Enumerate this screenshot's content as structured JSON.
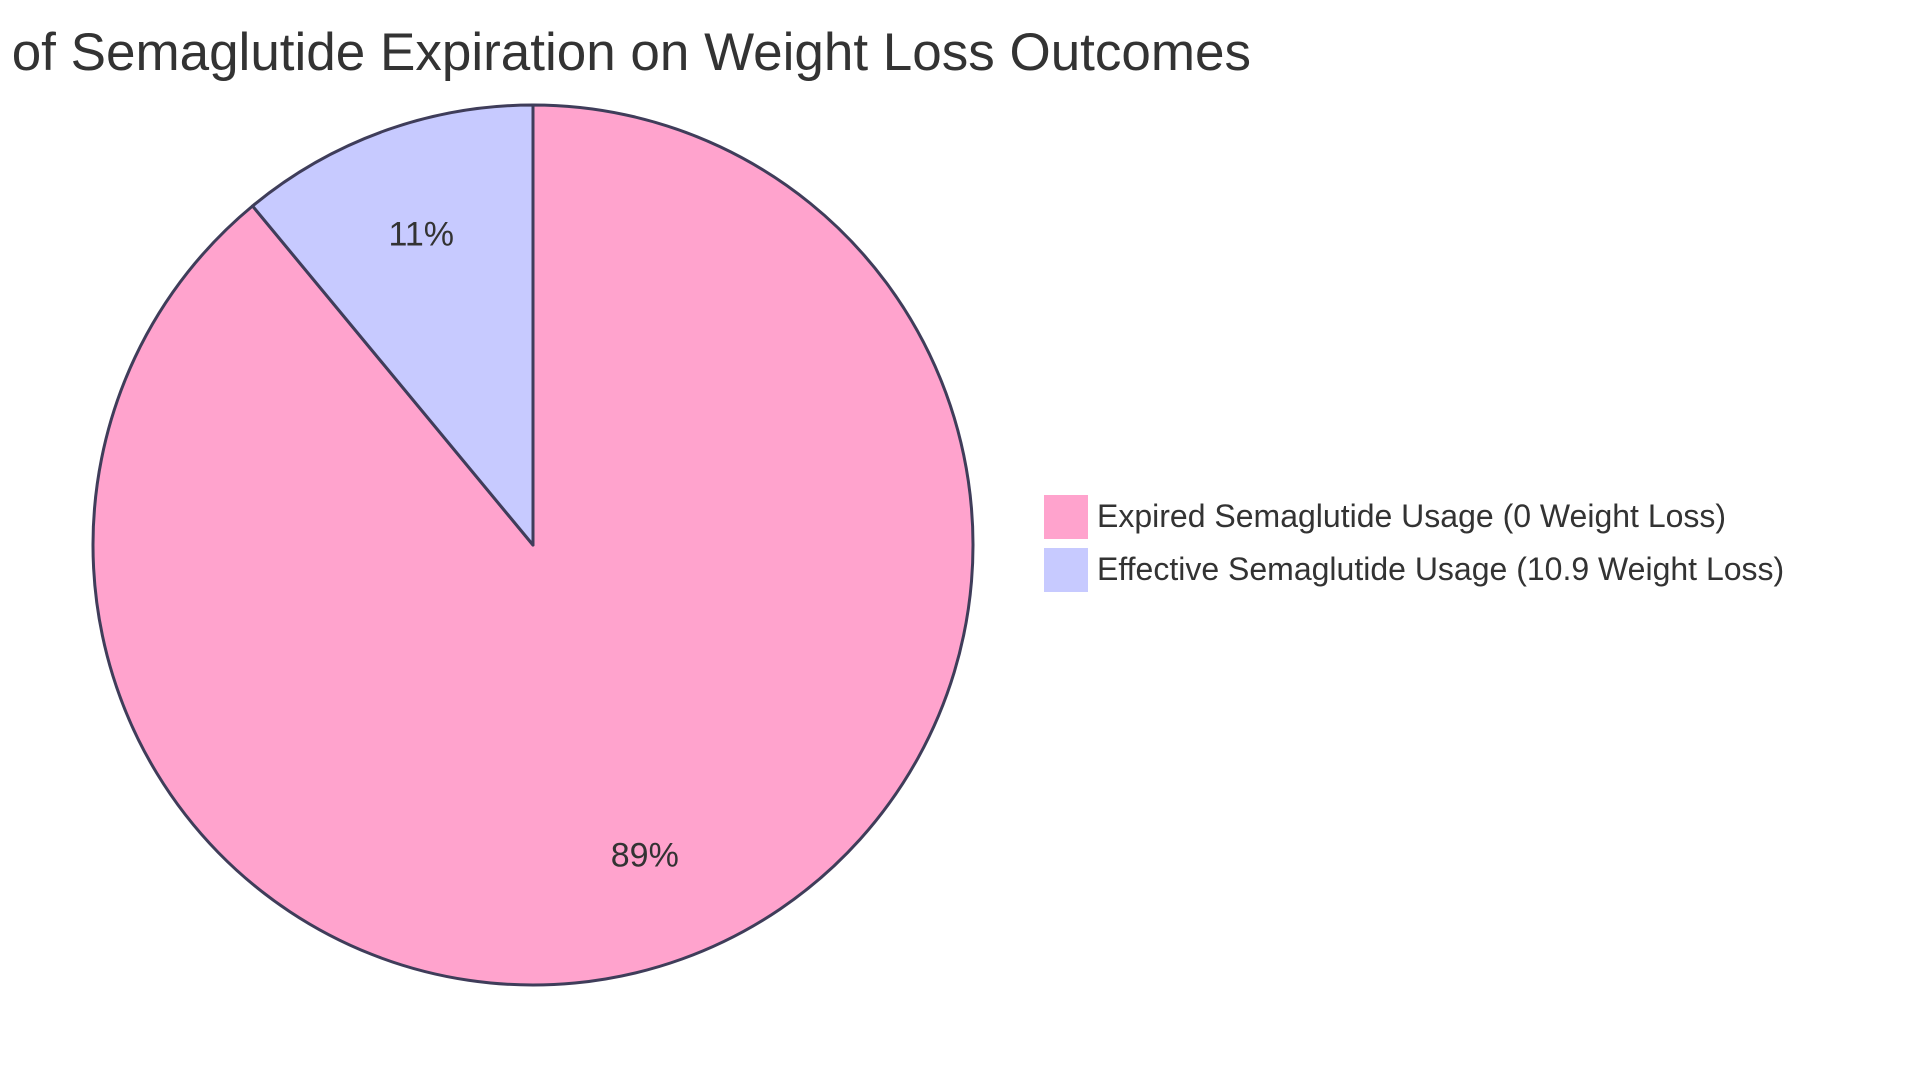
{
  "chart_data": {
    "type": "pie",
    "title": "of Semaglutide Expiration on Weight Loss Outcomes",
    "slices": [
      {
        "label": "Expired Semaglutide Usage (0 Weight Loss)",
        "value": 89,
        "display": "89%",
        "color": "#ffa3cd"
      },
      {
        "label": "Effective Semaglutide Usage (10.9 Weight Loss)",
        "value": 11,
        "display": "11%",
        "color": "#c7caff"
      }
    ],
    "legend_position": "right",
    "start_angle": "top",
    "direction": "clockwise",
    "stroke_color": "#3f3d5a"
  }
}
